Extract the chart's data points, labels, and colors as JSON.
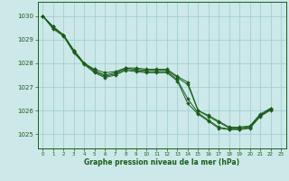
{
  "background_color": "#cce8e8",
  "grid_color": "#99cccc",
  "line_color": "#1a5c1a",
  "marker_color": "#1a5c1a",
  "xlabel": "Graphe pression niveau de la mer (hPa)",
  "xlim": [
    -0.5,
    23.5
  ],
  "ylim": [
    1024.4,
    1030.6
  ],
  "yticks": [
    1025,
    1026,
    1027,
    1028,
    1029,
    1030
  ],
  "xticks": [
    0,
    1,
    2,
    3,
    4,
    5,
    6,
    7,
    8,
    9,
    10,
    11,
    12,
    13,
    14,
    15,
    16,
    17,
    18,
    19,
    20,
    21,
    22,
    23
  ],
  "lines": [
    {
      "x": [
        0,
        1,
        2,
        3,
        4,
        5,
        6,
        7,
        8,
        9,
        10,
        11,
        12,
        13,
        14,
        15,
        16,
        17,
        18,
        19,
        20,
        21,
        22
      ],
      "y": [
        1030.0,
        1029.55,
        1029.2,
        1028.55,
        1028.0,
        1027.75,
        1027.6,
        1027.65,
        1027.8,
        1027.8,
        1027.75,
        1027.75,
        1027.75,
        1027.45,
        1027.2,
        1026.0,
        1025.8,
        1025.55,
        1025.3,
        1025.3,
        1025.35,
        1025.85,
        1026.1
      ]
    },
    {
      "x": [
        0,
        1,
        2,
        3,
        4,
        5,
        6,
        7,
        8,
        9,
        10,
        11,
        12,
        13,
        14,
        15,
        16,
        17,
        18,
        19,
        20,
        21,
        22
      ],
      "y": [
        1030.0,
        1029.55,
        1029.2,
        1028.55,
        1028.0,
        1027.7,
        1027.5,
        1027.6,
        1027.8,
        1027.75,
        1027.7,
        1027.7,
        1027.7,
        1027.4,
        1027.1,
        1026.0,
        1025.75,
        1025.5,
        1025.27,
        1025.27,
        1025.32,
        1025.82,
        1026.07
      ]
    },
    {
      "x": [
        0,
        1,
        2,
        3,
        4,
        5,
        6,
        7,
        8,
        9,
        10,
        11,
        12,
        13,
        14,
        15,
        16,
        17,
        18,
        19,
        20,
        21,
        22
      ],
      "y": [
        1030.0,
        1029.5,
        1029.2,
        1028.5,
        1028.0,
        1027.65,
        1027.45,
        1027.55,
        1027.75,
        1027.7,
        1027.65,
        1027.65,
        1027.65,
        1027.3,
        1026.5,
        1025.9,
        1025.6,
        1025.3,
        1025.22,
        1025.22,
        1025.28,
        1025.78,
        1026.05
      ]
    },
    {
      "x": [
        0,
        1,
        2,
        3,
        4,
        5,
        6,
        7,
        8,
        9,
        10,
        11,
        12,
        13,
        14,
        15,
        16,
        17,
        18,
        19,
        20,
        21,
        22
      ],
      "y": [
        1030.0,
        1029.45,
        1029.15,
        1028.45,
        1027.95,
        1027.6,
        1027.4,
        1027.5,
        1027.7,
        1027.65,
        1027.6,
        1027.6,
        1027.6,
        1027.25,
        1026.3,
        1025.85,
        1025.55,
        1025.25,
        1025.2,
        1025.2,
        1025.25,
        1025.75,
        1026.02
      ]
    }
  ]
}
